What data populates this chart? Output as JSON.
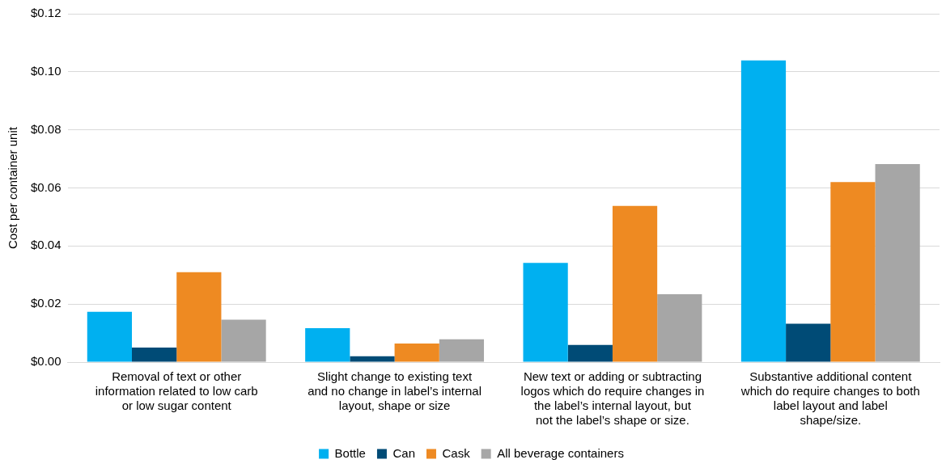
{
  "chart_data": {
    "type": "bar",
    "ylabel": "Cost per container unit",
    "categories": [
      "Removal of text or other information related to low carb or low sugar content",
      "Slight change to existing text and no change in label’s internal layout, shape or size",
      "New text or adding or subtracting logos which do require changes in the label’s internal layout, but not the label’s shape or size.",
      "Substantive additional content which do require changes to both label layout and label shape/size."
    ],
    "series": [
      {
        "name": "Bottle",
        "color": "#00b0f0",
        "values": [
          0.0173,
          0.0117,
          0.0342,
          0.1039
        ]
      },
      {
        "name": "Can",
        "color": "#004b76",
        "values": [
          0.005,
          0.002,
          0.0059,
          0.0132
        ]
      },
      {
        "name": "Cask",
        "color": "#ee8a22",
        "values": [
          0.031,
          0.0064,
          0.0538,
          0.062
        ]
      },
      {
        "name": "All beverage containers",
        "color": "#a6a6a6",
        "values": [
          0.0146,
          0.0079,
          0.0234,
          0.0682
        ]
      }
    ],
    "ylim": [
      0,
      0.12
    ],
    "yticks": [
      {
        "value": 0,
        "label": "$0.00"
      },
      {
        "value": 0.02,
        "label": "$0.02"
      },
      {
        "value": 0.04,
        "label": "$0.04"
      },
      {
        "value": 0.06,
        "label": "$0.06"
      },
      {
        "value": 0.08,
        "label": "$0.08"
      },
      {
        "value": 0.1,
        "label": "$0.10"
      },
      {
        "value": 0.12,
        "label": "$0.12"
      }
    ],
    "grid": "y",
    "legend": "bottom"
  }
}
